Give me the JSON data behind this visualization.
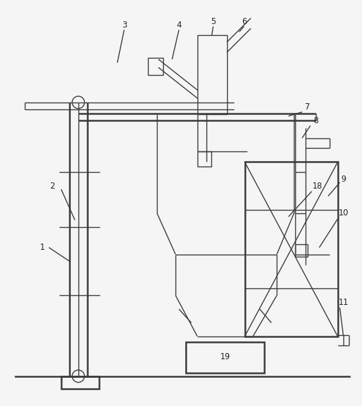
{
  "line_color": "#3a3a3a",
  "bg_color": "#f5f5f5",
  "lw": 1.0,
  "lw2": 1.8
}
